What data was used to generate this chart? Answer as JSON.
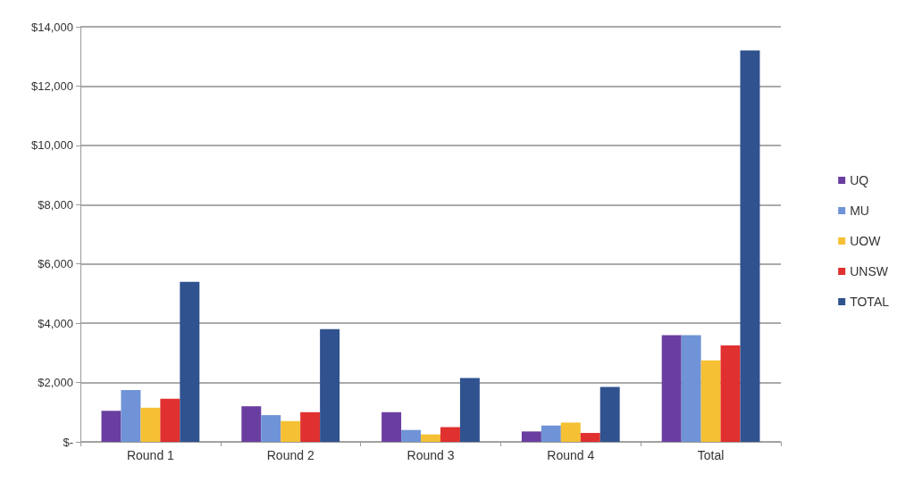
{
  "chart_data": {
    "type": "bar",
    "categories": [
      "Round 1",
      "Round 2",
      "Round 3",
      "Round 4",
      "Total"
    ],
    "series": [
      {
        "name": "UQ",
        "color": "#6a3ea0",
        "values": [
          1050,
          1200,
          1000,
          350,
          3600
        ]
      },
      {
        "name": "MU",
        "color": "#6f93d6",
        "values": [
          1750,
          900,
          400,
          550,
          3600
        ]
      },
      {
        "name": "UOW",
        "color": "#f5c033",
        "values": [
          1150,
          700,
          250,
          650,
          2750
        ]
      },
      {
        "name": "UNSW",
        "color": "#e0302f",
        "values": [
          1450,
          1000,
          500,
          300,
          3250
        ]
      },
      {
        "name": "TOTAL",
        "color": "#30528f",
        "values": [
          5400,
          3800,
          2150,
          1850,
          13200
        ]
      }
    ],
    "ylim": [
      0,
      14000
    ],
    "yticks": [
      {
        "value": 0,
        "label": "$-"
      },
      {
        "value": 2000,
        "label": "$2,000"
      },
      {
        "value": 4000,
        "label": "$4,000"
      },
      {
        "value": 6000,
        "label": "$6,000"
      },
      {
        "value": 8000,
        "label": "$8,000"
      },
      {
        "value": 10000,
        "label": "$10,000"
      },
      {
        "value": 12000,
        "label": "$12,000"
      },
      {
        "value": 14000,
        "label": "$14,000"
      }
    ],
    "grid": "y",
    "legend": "right"
  }
}
